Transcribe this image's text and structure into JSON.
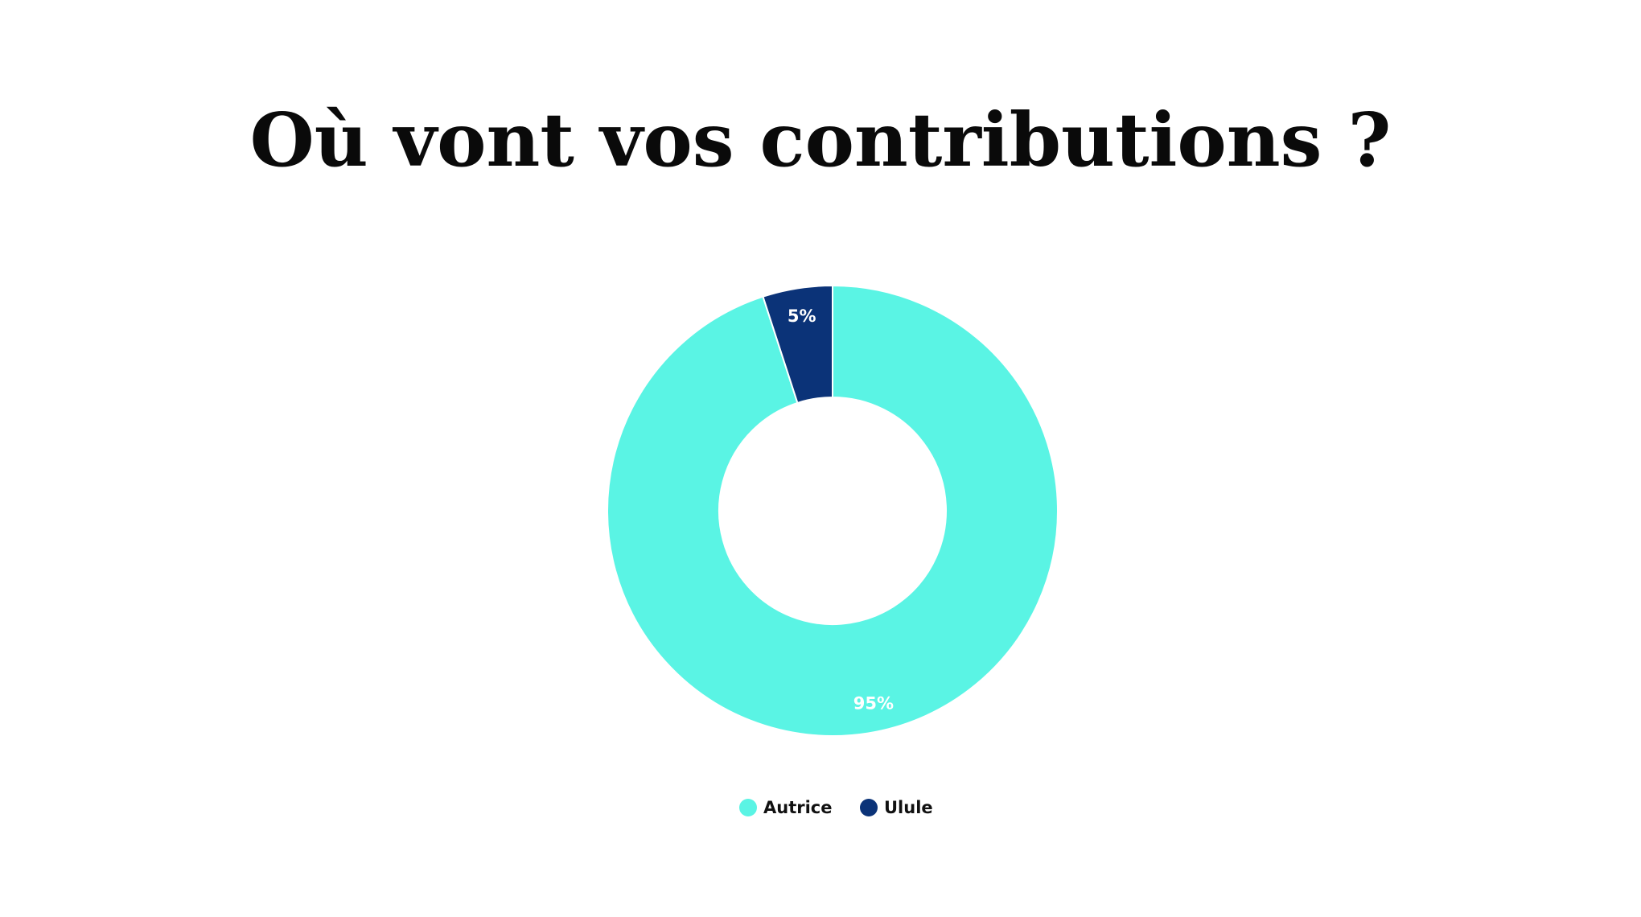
{
  "slide": {
    "title": "Où vont vos contributions ?"
  },
  "chart_data": {
    "type": "pie",
    "subtype": "donut",
    "title": "",
    "categories": [
      "Autrice",
      "Ulule"
    ],
    "values": [
      95,
      5
    ],
    "value_labels": [
      "95%",
      "5%"
    ],
    "colors": [
      "#5af4e4",
      "#0b3378"
    ],
    "legend": {
      "position": "bottom",
      "entries": [
        "Autrice",
        "Ulule"
      ]
    },
    "start": "top",
    "direction": "counterclockwise-from-top-for-small-slice"
  }
}
